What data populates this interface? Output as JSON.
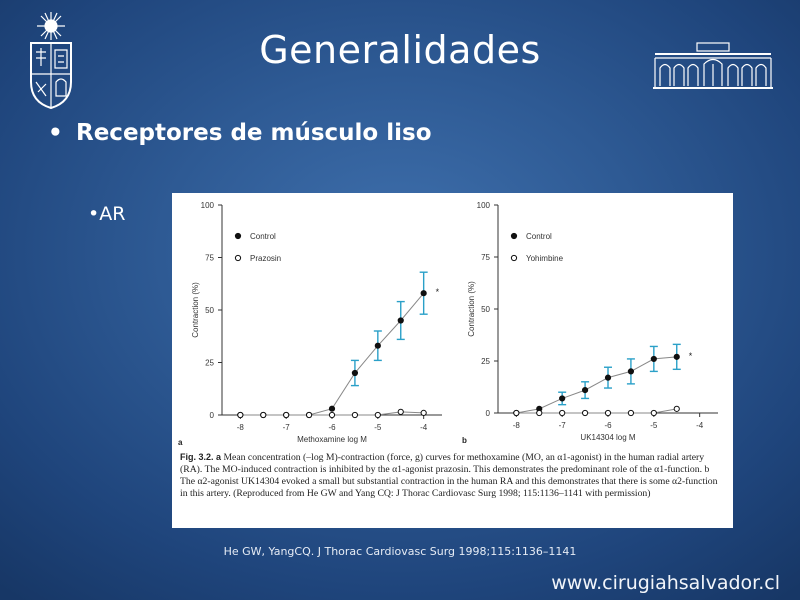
{
  "slide": {
    "title": "Generalidades",
    "bullet_1": "Receptores de músculo liso",
    "bullet_1_marker": "•",
    "bullet_2": "•AR",
    "citation": "He GW, YangCQ. J Thorac Cardiovasc Surg 1998;115:1136–1141",
    "website": "www.cirugiahsalvador.cl"
  },
  "logos": {
    "left": "university-crest-icon",
    "right": "hospital-building-icon"
  },
  "colors": {
    "background": "#2e5a94",
    "error_bar": "#2aa0c8",
    "series_line": "#888888"
  },
  "chart_data": [
    {
      "type": "line",
      "panel_label": "a",
      "xlabel": "Methoxamine  log M",
      "ylabel": "Contraction (%)",
      "xlim": [
        -8.4,
        -3.6
      ],
      "ylim": [
        0,
        100
      ],
      "xticks": [
        -8,
        -7,
        -6,
        -5,
        -4
      ],
      "yticks": [
        0,
        25,
        50,
        75,
        100
      ],
      "legend_position": "top-left",
      "significance_mark": "*",
      "series": [
        {
          "name": "Control",
          "marker": "filled",
          "x": [
            -8,
            -7.5,
            -7,
            -6.5,
            -6,
            -5.5,
            -5,
            -4.5,
            -4
          ],
          "y": [
            0,
            0,
            0,
            0,
            3,
            20,
            33,
            45,
            58
          ],
          "err": [
            0,
            0,
            0,
            0,
            0,
            6,
            7,
            9,
            10
          ]
        },
        {
          "name": "Prazosin",
          "marker": "open",
          "x": [
            -8,
            -7.5,
            -7,
            -6.5,
            -6,
            -5.5,
            -5,
            -4.5,
            -4
          ],
          "y": [
            0,
            0,
            0,
            0,
            0,
            0,
            0,
            1.5,
            1
          ],
          "err": [
            0,
            0,
            0,
            0,
            0,
            0,
            0,
            0,
            0
          ]
        }
      ]
    },
    {
      "type": "line",
      "panel_label": "b",
      "xlabel": "UK14304  log M",
      "ylabel": "Contraction (%)",
      "xlim": [
        -8.4,
        -3.6
      ],
      "ylim": [
        0,
        100
      ],
      "xticks": [
        -8,
        -7,
        -6,
        -5,
        -4
      ],
      "yticks": [
        0,
        25,
        50,
        75,
        100
      ],
      "legend_position": "top-left",
      "significance_mark": "*",
      "series": [
        {
          "name": "Control",
          "marker": "filled",
          "x": [
            -8,
            -7.5,
            -7,
            -6.5,
            -6,
            -5.5,
            -5,
            -4.5
          ],
          "y": [
            0,
            2,
            7,
            11,
            17,
            20,
            26,
            27
          ],
          "err": [
            0,
            0,
            3,
            4,
            5,
            6,
            6,
            6
          ]
        },
        {
          "name": "Yohimbine",
          "marker": "open",
          "x": [
            -8,
            -7.5,
            -7,
            -6.5,
            -6,
            -5.5,
            -5,
            -4.5
          ],
          "y": [
            0,
            0,
            0,
            0,
            0,
            0,
            0,
            2
          ],
          "err": [
            0,
            0,
            0,
            0,
            0,
            0,
            0,
            0
          ]
        }
      ]
    }
  ],
  "caption": {
    "label": "Fig. 3.2. a",
    "text": "Mean concentration (–log M)-contraction (force, g) curves for methoxamine (MO, an α1-agonist) in the human radial artery (RA). The MO-induced contraction is inhibited by the α1-agonist prazosin. This demonstrates the predominant role of the α1-function. b The α2-agonist UK14304 evoked a small but substantial contraction in the human RA and this demonstrates that there is some α2-function in this artery. (Reproduced from He GW and Yang CQ: J Thorac Cardiovasc Surg 1998; 115:1136–1141 with permission)"
  }
}
